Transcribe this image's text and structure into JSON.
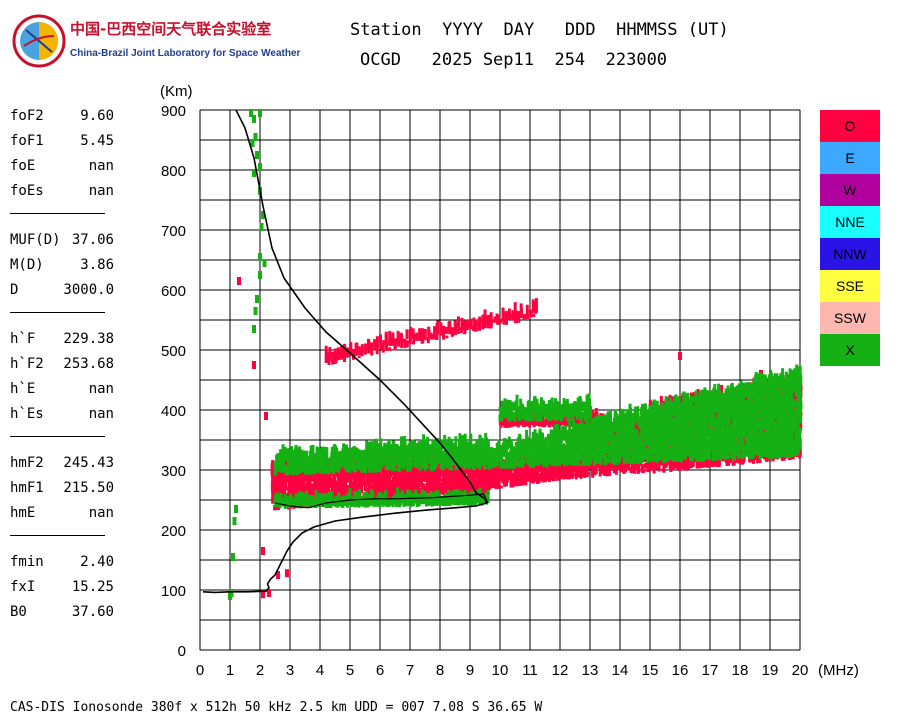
{
  "logo": {
    "title": "中国-巴西空间天气联合实验室",
    "subtitle": "China-Brazil Joint Laboratory for Space Weather"
  },
  "header": {
    "line1": "Station  YYYY  DAY   DDD  HHMMSS (UT)",
    "line2": "OCGD   2025 Sep11  254  223000"
  },
  "params": {
    "group1": [
      {
        "label": "foF2",
        "value": "9.60"
      },
      {
        "label": "foF1",
        "value": "5.45"
      },
      {
        "label": "foE",
        "value": "nan"
      },
      {
        "label": "foEs",
        "value": "nan"
      }
    ],
    "group2": [
      {
        "label": "MUF(D)",
        "value": "37.06"
      },
      {
        "label": "M(D)",
        "value": "3.86"
      },
      {
        "label": "D",
        "value": "3000.0"
      }
    ],
    "group3": [
      {
        "label": "h`F",
        "value": "229.38"
      },
      {
        "label": "h`F2",
        "value": "253.68"
      },
      {
        "label": "h`E",
        "value": "nan"
      },
      {
        "label": "h`Es",
        "value": "nan"
      }
    ],
    "group4": [
      {
        "label": "hmF2",
        "value": "245.43"
      },
      {
        "label": "hmF1",
        "value": "215.50"
      },
      {
        "label": "hmE",
        "value": "nan"
      }
    ],
    "group5": [
      {
        "label": "fmin",
        "value": "2.40"
      },
      {
        "label": "fxI",
        "value": "15.25"
      },
      {
        "label": "B0",
        "value": "37.60"
      }
    ]
  },
  "legend": [
    {
      "label": "O",
      "color": "#ff0040"
    },
    {
      "label": "E",
      "color": "#3ca8ff"
    },
    {
      "label": "W",
      "color": "#b0009e"
    },
    {
      "label": "NNE",
      "color": "#19ffff"
    },
    {
      "label": "NNW",
      "color": "#2a13e6"
    },
    {
      "label": "SSE",
      "color": "#ffff40"
    },
    {
      "label": "SSW",
      "color": "#ffb8b0"
    },
    {
      "label": "X",
      "color": "#14b014"
    }
  ],
  "footer": "CAS-DIS Ionosonde 380f x 512h 50 kHz 2.5 km UDD = 007 7.08 S 36.65 W",
  "chart_data": {
    "type": "scatter",
    "title": "Ionogram",
    "xlabel": "(MHz)",
    "ylabel": "(Km)",
    "xlim": [
      0,
      20
    ],
    "ylim": [
      0,
      900
    ],
    "xticks": [
      0,
      1,
      2,
      3,
      4,
      5,
      6,
      7,
      8,
      9,
      10,
      11,
      12,
      13,
      14,
      15,
      16,
      17,
      18,
      19,
      20
    ],
    "yticks": [
      0,
      100,
      200,
      300,
      400,
      500,
      600,
      700,
      800,
      900
    ],
    "x_minor_step": 1,
    "y_minor_step": 50,
    "grid": true,
    "profile_curve": {
      "name": "electron density profile",
      "color": "#000000",
      "points": [
        [
          0.1,
          97
        ],
        [
          0.5,
          96
        ],
        [
          1.0,
          97
        ],
        [
          1.6,
          97
        ],
        [
          2.2,
          98
        ],
        [
          2.3,
          104
        ],
        [
          2.25,
          110
        ],
        [
          2.35,
          118
        ],
        [
          2.5,
          125
        ],
        [
          2.6,
          135
        ],
        [
          2.75,
          150
        ],
        [
          2.9,
          165
        ],
        [
          3.1,
          180
        ],
        [
          3.4,
          195
        ],
        [
          3.8,
          205
        ],
        [
          4.5,
          215
        ],
        [
          5.5,
          222
        ],
        [
          6.5,
          228
        ],
        [
          7.5,
          233
        ],
        [
          8.5,
          237
        ],
        [
          9.2,
          240
        ],
        [
          9.55,
          245
        ],
        [
          9.5,
          252
        ],
        [
          9.2,
          262
        ],
        [
          9.0,
          280
        ],
        [
          8.7,
          300
        ],
        [
          8.4,
          320
        ],
        [
          8.0,
          345
        ],
        [
          7.5,
          372
        ],
        [
          6.8,
          410
        ],
        [
          6.0,
          450
        ],
        [
          5.0,
          495
        ],
        [
          4.2,
          530
        ],
        [
          3.5,
          570
        ],
        [
          2.8,
          620
        ],
        [
          2.4,
          670
        ],
        [
          2.1,
          740
        ],
        [
          1.8,
          820
        ],
        [
          1.5,
          870
        ],
        [
          1.2,
          900
        ]
      ]
    },
    "virtual_height_trace": {
      "name": "virtual height trace",
      "color": "#000000",
      "points": [
        [
          2.5,
          245
        ],
        [
          3.0,
          240
        ],
        [
          3.6,
          237
        ],
        [
          4.2,
          245
        ],
        [
          5.0,
          250
        ],
        [
          5.8,
          252
        ],
        [
          6.5,
          252
        ],
        [
          7.2,
          253
        ],
        [
          7.8,
          254
        ],
        [
          8.4,
          256
        ],
        [
          9.0,
          258
        ],
        [
          9.45,
          260
        ],
        [
          9.6,
          245
        ]
      ]
    },
    "series": [
      {
        "name": "O",
        "color": "#ff0040",
        "regions": [
          {
            "type": "band",
            "x": [
              2.4,
              9.6
            ],
            "h_low": [
              232,
              258
            ],
            "h_high": [
              300,
              320
            ]
          },
          {
            "type": "band",
            "x": [
              9.6,
              12.0
            ],
            "h_low": [
              265,
              282
            ],
            "h_high": [
              305,
              315
            ]
          },
          {
            "type": "band",
            "x": [
              12.0,
              15.0
            ],
            "h_low": [
              282,
              295
            ],
            "h_high": [
              320,
              390
            ]
          },
          {
            "type": "band",
            "x": [
              15.0,
              20.0
            ],
            "h_low": [
              293,
              318
            ],
            "h_high": [
              400,
              445
            ]
          },
          {
            "type": "band",
            "x": [
              10.0,
              13.5
            ],
            "h_low": [
              370,
              372
            ],
            "h_high": [
              378,
              382
            ]
          },
          {
            "type": "line",
            "x": [
              4.2,
              11.2
            ],
            "h_low": [
              473,
              552
            ],
            "h_high": [
              490,
              565
            ]
          }
        ],
        "points": [
          [
            1.3,
            610
          ],
          [
            2.1,
            88
          ],
          [
            2.3,
            90
          ],
          [
            2.2,
            385
          ],
          [
            1.8,
            470
          ],
          [
            16.0,
            485
          ],
          [
            2.1,
            160
          ],
          [
            2.9,
            123
          ],
          [
            2.6,
            120
          ],
          [
            18.7,
            455
          ]
        ]
      },
      {
        "name": "X",
        "color": "#14b014",
        "regions": [
          {
            "type": "band",
            "x": [
              2.5,
              9.6
            ],
            "h_low": [
              290,
              300
            ],
            "h_high": [
              320,
              345
            ]
          },
          {
            "type": "band",
            "x": [
              9.6,
              20.0
            ],
            "h_low": [
              300,
              320
            ],
            "h_high": [
              330,
              460
            ]
          },
          {
            "type": "band",
            "x": [
              10.0,
              13.0
            ],
            "h_low": [
              380,
              380
            ],
            "h_high": [
              402,
              408
            ]
          },
          {
            "type": "band",
            "x": [
              2.5,
              9.6
            ],
            "h_low": [
              235,
              240
            ],
            "h_high": [
              245,
              250
            ]
          }
        ],
        "points": [
          [
            1.0,
            85
          ],
          [
            1.05,
            90
          ],
          [
            1.1,
            150
          ],
          [
            1.15,
            210
          ],
          [
            1.2,
            230
          ],
          [
            1.8,
            530
          ],
          [
            1.85,
            560
          ],
          [
            1.9,
            580
          ],
          [
            2.0,
            620
          ],
          [
            2.0,
            650
          ],
          [
            2.05,
            700
          ],
          [
            2.0,
            760
          ],
          [
            2.0,
            800
          ],
          [
            1.9,
            820
          ],
          [
            1.85,
            850
          ],
          [
            1.8,
            880
          ],
          [
            2.0,
            890
          ],
          [
            2.1,
            720
          ],
          [
            2.15,
            640
          ],
          [
            1.7,
            890
          ],
          [
            1.75,
            840
          ],
          [
            1.8,
            790
          ]
        ]
      }
    ]
  }
}
